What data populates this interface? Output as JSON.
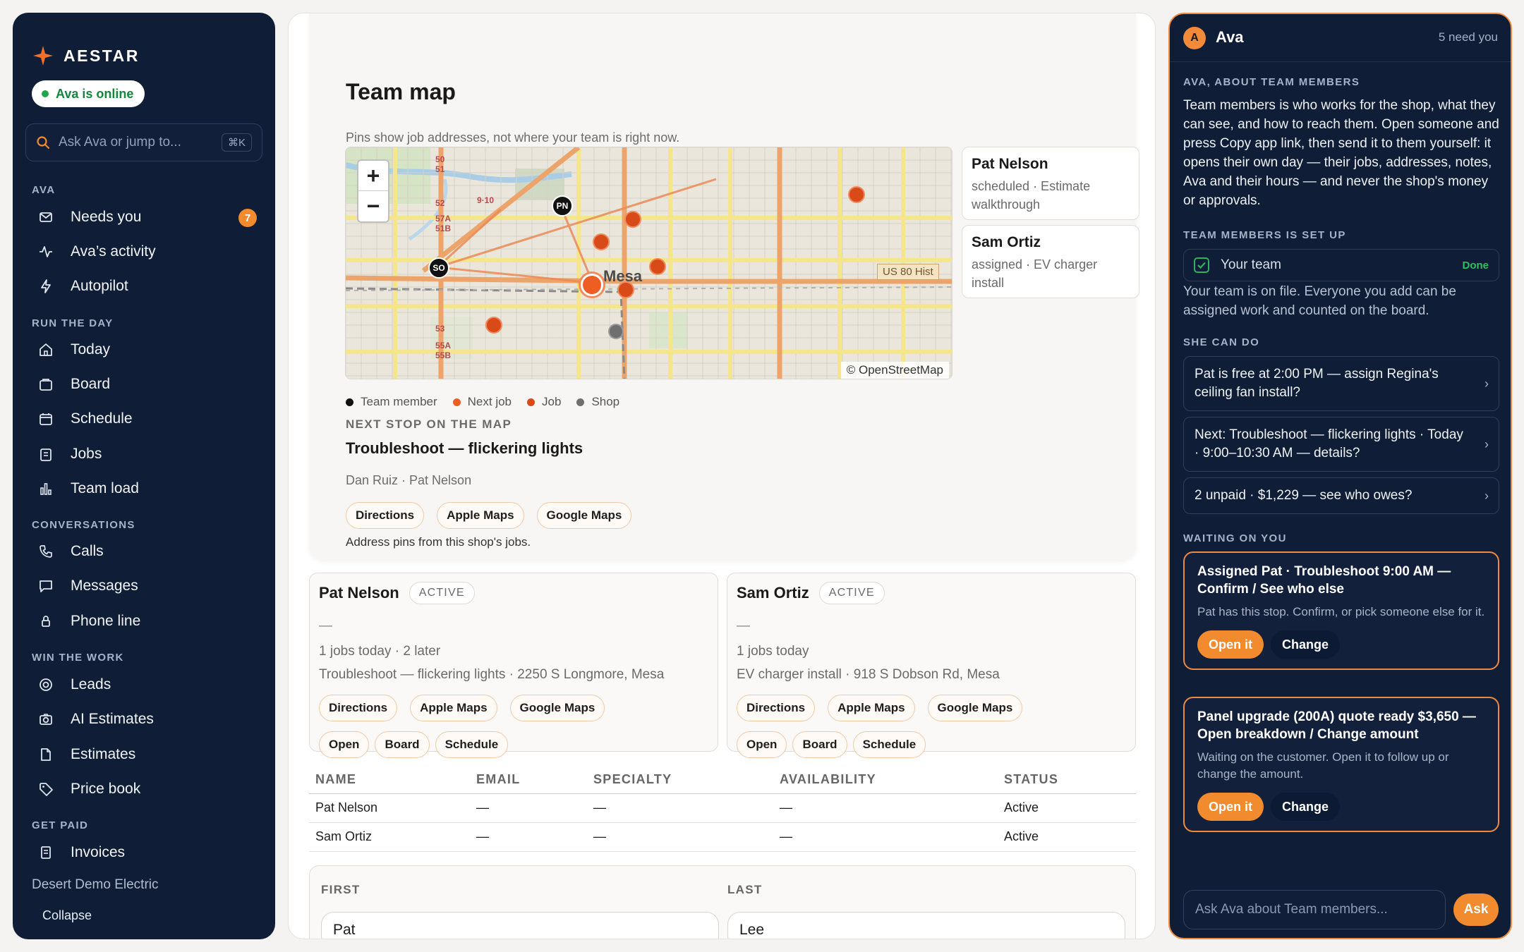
{
  "sidebar": {
    "brand": "AESTAR",
    "status": "Ava is online",
    "search_placeholder": "Ask Ava or jump to...",
    "search_shortcut": "⌘K",
    "sections": {
      "ava": "AVA",
      "run": "RUN THE DAY",
      "conv": "CONVERSATIONS",
      "win": "WIN THE WORK",
      "paid": "GET PAID"
    },
    "items": {
      "needs_you": "Needs you",
      "needs_you_count": "7",
      "activity": "Ava’s activity",
      "autopilot": "Autopilot",
      "today": "Today",
      "board": "Board",
      "schedule": "Schedule",
      "jobs": "Jobs",
      "team_load": "Team load",
      "calls": "Calls",
      "messages": "Messages",
      "phone_line": "Phone line",
      "leads": "Leads",
      "ai_estimates": "AI Estimates",
      "estimates": "Estimates",
      "price_book": "Price book",
      "invoices": "Invoices"
    },
    "org": "Desert Demo Electric",
    "collapse": "Collapse"
  },
  "main": {
    "title": "Team map",
    "subtitle": "Pins show job addresses, not where your team is right now.",
    "map": {
      "place": "Mesa",
      "highway": "US 80 Hist",
      "attribution": "© OpenStreetMap",
      "zoom_in": "+",
      "zoom_out": "−",
      "member_pins": [
        "PN",
        "SO"
      ],
      "road_numbers": [
        "50",
        "51",
        "52",
        "57A",
        "51B",
        "9·10",
        "53",
        "55A",
        "55B"
      ]
    },
    "people": [
      {
        "name": "Pat Nelson",
        "detail": "scheduled · Estimate walkthrough"
      },
      {
        "name": "Sam Ortiz",
        "detail": "assigned · EV charger install"
      }
    ],
    "legend": {
      "member": "Team member",
      "next": "Next job",
      "job": "Job",
      "shop": "Shop"
    },
    "legend_colors": {
      "member": "#111111",
      "next": "#ee5d22",
      "job": "#d84a18",
      "shop": "#6f6f6f"
    },
    "next_stop": {
      "label": "NEXT STOP ON THE MAP",
      "title": "Troubleshoot — flickering lights",
      "meta": "Dan Ruiz · Pat Nelson",
      "directions": "Directions",
      "apple": "Apple Maps",
      "google": "Google Maps",
      "note": "Address pins from this shop's jobs."
    },
    "members": [
      {
        "name": "Pat Nelson",
        "status": "ACTIVE",
        "dash": "—",
        "jobs": "1 jobs today · 2 later",
        "current": "Troubleshoot — flickering lights · 2250 S Longmore, Mesa",
        "directions": "Directions",
        "apple": "Apple Maps",
        "google": "Google Maps",
        "open": "Open",
        "board": "Board",
        "schedule": "Schedule"
      },
      {
        "name": "Sam Ortiz",
        "status": "ACTIVE",
        "dash": "—",
        "jobs": "1 jobs today",
        "current": "EV charger install · 918 S Dobson Rd, Mesa",
        "directions": "Directions",
        "apple": "Apple Maps",
        "google": "Google Maps",
        "open": "Open",
        "board": "Board",
        "schedule": "Schedule"
      }
    ],
    "table": {
      "headers": [
        "NAME",
        "EMAIL",
        "SPECIALTY",
        "AVAILABILITY",
        "STATUS"
      ],
      "rows": [
        [
          "Pat Nelson",
          "—",
          "—",
          "—",
          "Active"
        ],
        [
          "Sam Ortiz",
          "—",
          "—",
          "—",
          "Active"
        ]
      ]
    },
    "form": {
      "first_label": "FIRST",
      "first_value": "Pat",
      "last_label": "LAST",
      "last_value": "Lee"
    }
  },
  "ava": {
    "avatar": "A",
    "name": "Ava",
    "need": "5 need you",
    "about_label": "AVA, ABOUT TEAM MEMBERS",
    "about_text": "Team members is who works for the shop, what they can see, and how to reach them. Open someone and press Copy app link, then send it to them yourself: it opens their own day — their jobs, addresses, notes, Ava and their hours — and never the shop's money or approvals.",
    "setup_label": "TEAM MEMBERS IS SET UP",
    "setup_item": "Your team",
    "setup_done": "Done",
    "setup_note": "Your team is on file. Everyone you add can be assigned work and counted on the board.",
    "can_do_label": "SHE CAN DO",
    "actions": [
      "Pat is free at 2:00 PM — assign Regina's ceiling fan install?",
      "Next: Troubleshoot — flickering lights · Today · 9:00–10:30 AM — details?",
      "2 unpaid · $1,229 — see who owes?"
    ],
    "waiting_label": "WAITING ON YOU",
    "waiting": [
      {
        "title": "Assigned Pat · Troubleshoot 9:00 AM — Confirm / See who else",
        "desc": "Pat has this stop. Confirm, or pick someone else for it.",
        "open": "Open it",
        "change": "Change"
      },
      {
        "title": "Panel upgrade (200A) quote ready $3,650 — Open breakdown / Change amount",
        "desc": "Waiting on the customer. Open it to follow up or change the amount.",
        "open": "Open it",
        "change": "Change"
      }
    ],
    "ask_placeholder": "Ask Ava about Team members...",
    "ask_button": "Ask"
  },
  "colors": {
    "navy": "#0f1d36",
    "accent": "#f28a2e",
    "online": "#1fa64a"
  }
}
